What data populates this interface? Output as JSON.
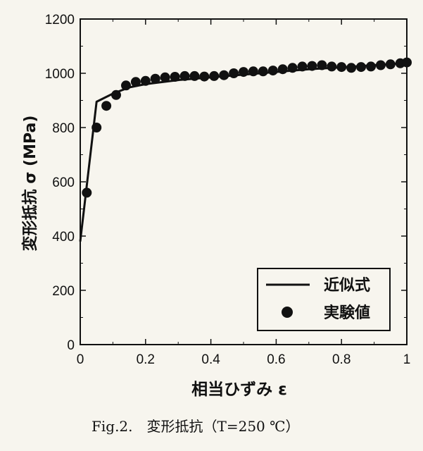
{
  "caption": "Fig.2.　変形抵抗（T=250 ℃）",
  "chart_data": {
    "type": "scatter",
    "title": "",
    "xlabel": "相当ひずみ ε",
    "ylabel": "変形抵抗 σ (MPa)",
    "xlim": [
      0,
      1
    ],
    "ylim": [
      0,
      1200
    ],
    "x_ticks": [
      "0",
      "0.2",
      "0.4",
      "0.6",
      "0.8",
      "1"
    ],
    "y_ticks": [
      "0",
      "200",
      "400",
      "600",
      "800",
      "1000",
      "1200"
    ],
    "legend_position": "bottom-right",
    "grid": false,
    "series": [
      {
        "name": "近似式",
        "kind": "line",
        "color": "#111111",
        "x": [
          0,
          0.05,
          0.1,
          0.15,
          0.2,
          0.3,
          0.4,
          0.5,
          0.6,
          0.7,
          0.8,
          0.9,
          1.0
        ],
        "y": [
          380,
          895,
          925,
          948,
          960,
          975,
          985,
          995,
          1005,
          1015,
          1022,
          1030,
          1038
        ]
      },
      {
        "name": "実験値",
        "kind": "scatter",
        "color": "#111111",
        "x": [
          0.02,
          0.05,
          0.08,
          0.11,
          0.14,
          0.17,
          0.2,
          0.23,
          0.26,
          0.29,
          0.32,
          0.35,
          0.38,
          0.41,
          0.44,
          0.47,
          0.5,
          0.53,
          0.56,
          0.59,
          0.62,
          0.65,
          0.68,
          0.71,
          0.74,
          0.77,
          0.8,
          0.83,
          0.86,
          0.89,
          0.92,
          0.95,
          0.98,
          1.0
        ],
        "y": [
          560,
          800,
          880,
          920,
          955,
          968,
          972,
          980,
          985,
          987,
          990,
          990,
          988,
          990,
          993,
          1000,
          1005,
          1007,
          1007,
          1010,
          1015,
          1020,
          1025,
          1027,
          1030,
          1025,
          1023,
          1020,
          1023,
          1025,
          1030,
          1033,
          1037,
          1040
        ]
      }
    ]
  }
}
